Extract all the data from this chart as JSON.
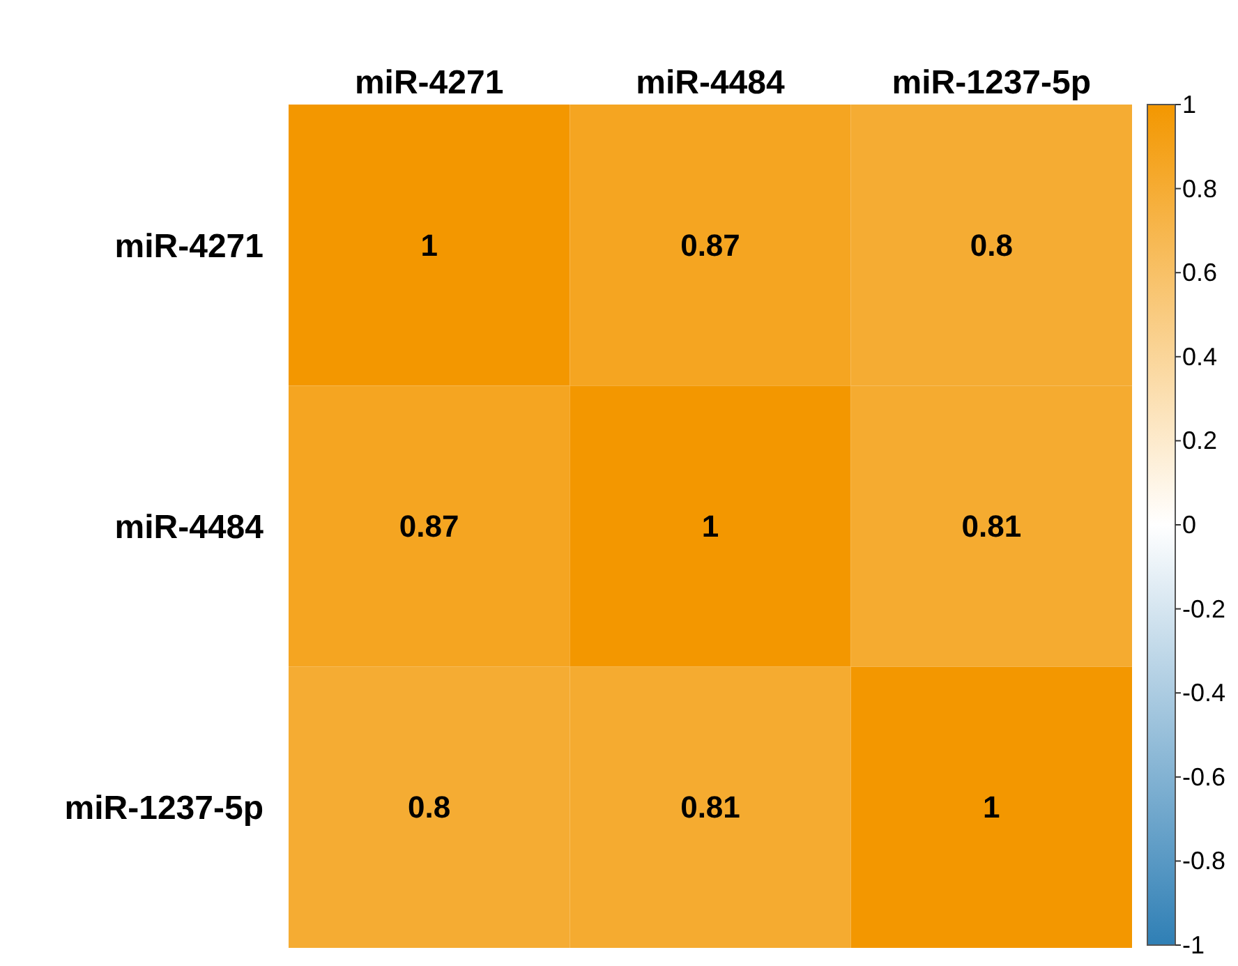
{
  "chart_data": {
    "type": "heatmap",
    "categories": [
      "miR-4271",
      "miR-4484",
      "miR-1237-5p"
    ],
    "y_categories": [
      "miR-4271",
      "miR-4484",
      "miR-1237-5p"
    ],
    "cells": [
      [
        1,
        0.87,
        0.8
      ],
      [
        0.87,
        1,
        0.81
      ],
      [
        0.8,
        0.81,
        1
      ]
    ],
    "data_labels": true,
    "clim": [
      -1,
      1
    ],
    "cticks": [
      1,
      0.8,
      0.6,
      0.4,
      0.2,
      0,
      -0.2,
      -0.4,
      -0.6,
      -0.8,
      -1
    ]
  }
}
